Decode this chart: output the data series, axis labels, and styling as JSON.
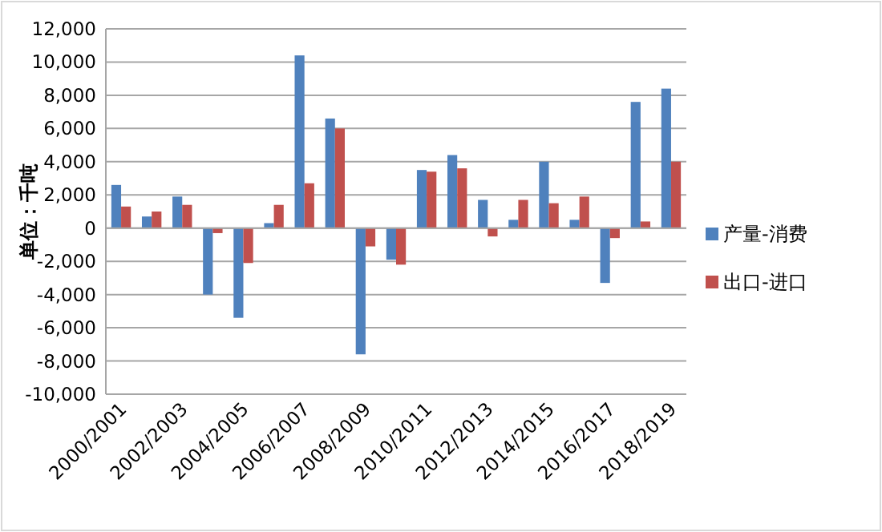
{
  "chart_data": {
    "type": "bar",
    "ylabel": "单位：千吨",
    "categories": [
      "2000/2001",
      null,
      "2002/2003",
      null,
      "2004/2005",
      null,
      "2006/2007",
      null,
      "2008/2009",
      null,
      "2010/2011",
      null,
      "2012/2013",
      null,
      "2014/2015",
      null,
      "2016/2017",
      null,
      "2018/2019"
    ],
    "series": [
      {
        "name": "产量-消费",
        "color": "#4f81bd",
        "values": [
          2600,
          700,
          1900,
          -4000,
          -5400,
          300,
          10400,
          6600,
          -7600,
          -1900,
          3500,
          4400,
          1700,
          500,
          4000,
          500,
          -3300,
          7600,
          8400
        ]
      },
      {
        "name": "出口-进口",
        "color": "#c0504d",
        "values": [
          1300,
          1000,
          1400,
          -300,
          -2100,
          1400,
          2700,
          6000,
          -1100,
          -2200,
          3400,
          3600,
          -500,
          1700,
          1500,
          1900,
          -600,
          400,
          4000
        ]
      }
    ],
    "ylim": [
      -10000,
      12000
    ],
    "yticks": [
      {
        "value": -10000,
        "label": "-10,000"
      },
      {
        "value": -8000,
        "label": "-8,000"
      },
      {
        "value": -6000,
        "label": "-6,000"
      },
      {
        "value": -4000,
        "label": "-4,000"
      },
      {
        "value": -2000,
        "label": "-2,000"
      },
      0,
      {
        "value": 2000,
        "label": "2,000"
      },
      {
        "value": 4000,
        "label": "4,000"
      },
      {
        "value": 6000,
        "label": "6,000"
      },
      {
        "value": 8000,
        "label": "8,000"
      },
      {
        "value": 10000,
        "label": "10,000"
      },
      {
        "value": 12000,
        "label": "12,000"
      }
    ],
    "grid": true,
    "legend": "right"
  }
}
